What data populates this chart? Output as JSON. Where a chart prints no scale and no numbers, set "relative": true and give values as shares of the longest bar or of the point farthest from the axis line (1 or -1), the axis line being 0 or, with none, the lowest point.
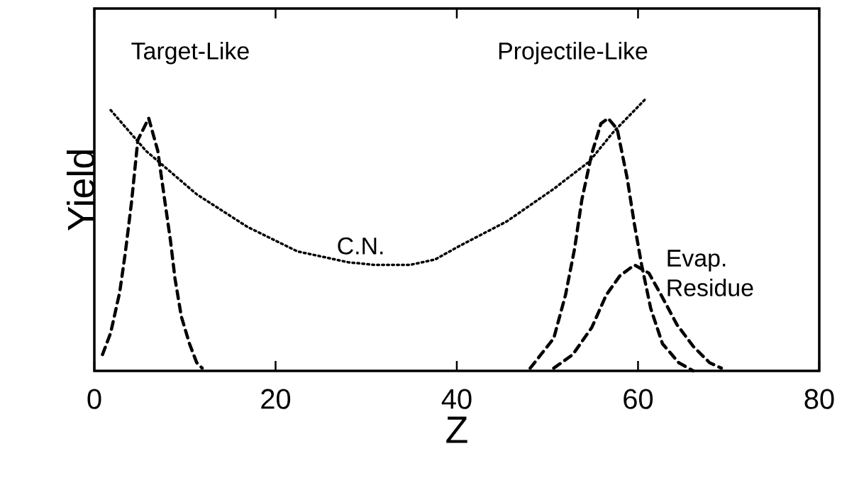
{
  "chart_data": {
    "type": "line",
    "relative": true,
    "xlabel": "Z",
    "ylabel": "Yield",
    "xlim": [
      0,
      80
    ],
    "xticks": [
      0,
      20,
      40,
      60,
      80
    ],
    "grid": false,
    "annotations": [
      "Target-Like",
      "C.N.",
      "Projectile-Like",
      "Evap. Residue"
    ],
    "series": [
      {
        "color": "#000000",
        "line_style": "dashed",
        "x": [
          0.9,
          1.8,
          2.8,
          3.4,
          4.1,
          4.8,
          6.0,
          7.0,
          7.8,
          8.4,
          8.9,
          9.6,
          10.5,
          11.3,
          11.9
        ],
        "values": [
          0.06,
          0.14,
          0.29,
          0.43,
          0.62,
          0.85,
          0.93,
          0.81,
          0.62,
          0.48,
          0.34,
          0.2,
          0.1,
          0.03,
          0.01
        ]
      },
      {
        "color": "#000000",
        "line_style": "dotted",
        "x": [
          1.8,
          5.7,
          11.3,
          16.9,
          22.4,
          28.0,
          31.0,
          34.8,
          37.6,
          40.3,
          45.5,
          50.7,
          54.6,
          57.3,
          60.8
        ],
        "values": [
          0.96,
          0.81,
          0.65,
          0.53,
          0.44,
          0.4,
          0.39,
          0.39,
          0.41,
          0.46,
          0.55,
          0.67,
          0.77,
          0.88,
          1.0
        ]
      },
      {
        "color": "#000000",
        "line_style": "dashed",
        "x": [
          48.1,
          50.7,
          52.0,
          53.0,
          53.8,
          54.9,
          55.9,
          56.7,
          57.7,
          58.8,
          59.6,
          60.4,
          61.4,
          62.7,
          64.5,
          66.1
        ],
        "values": [
          0.01,
          0.12,
          0.28,
          0.45,
          0.63,
          0.8,
          0.91,
          0.93,
          0.89,
          0.71,
          0.54,
          0.39,
          0.23,
          0.1,
          0.03,
          0.0
        ]
      },
      {
        "color": "#000000",
        "line_style": "dashed",
        "x": [
          50.7,
          52.8,
          54.9,
          56.5,
          58.0,
          59.6,
          61.2,
          62.7,
          64.3,
          66.1,
          67.9,
          69.2
        ],
        "values": [
          0.01,
          0.06,
          0.16,
          0.28,
          0.35,
          0.39,
          0.36,
          0.27,
          0.17,
          0.09,
          0.03,
          0.01
        ]
      }
    ]
  }
}
